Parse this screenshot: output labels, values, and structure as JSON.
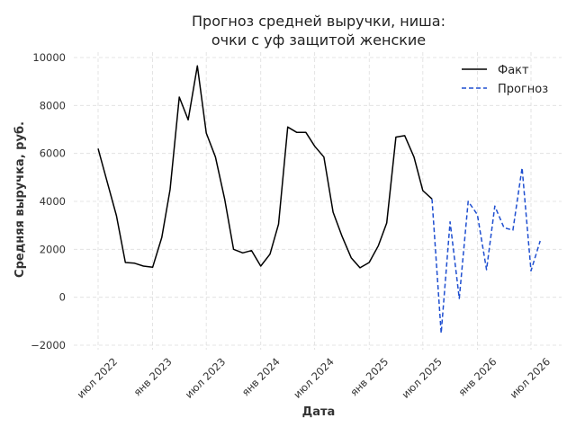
{
  "chart_data": {
    "type": "line",
    "title_line1": "Прогноз средней выручки, ниша:",
    "title_line2": "очки с уф защитой женские",
    "xlabel": "Дата",
    "ylabel": "Средняя выручка, руб.",
    "ylim": [
      -2000,
      10000
    ],
    "xlim": [
      "2022-04-01",
      "2026-08-01"
    ],
    "yticks": [
      -2000,
      0,
      2000,
      4000,
      6000,
      8000,
      10000
    ],
    "ytick_labels": [
      "−2000",
      "0",
      "2000",
      "4000",
      "6000",
      "8000",
      "10000"
    ],
    "xticks": [
      "2022-07-01",
      "2023-01-01",
      "2023-07-01",
      "2024-01-01",
      "2024-07-01",
      "2025-01-01",
      "2025-07-01",
      "2026-01-01",
      "2026-07-01"
    ],
    "xtick_labels": [
      "июл 2022",
      "янв 2023",
      "июл 2023",
      "янв 2024",
      "июл 2024",
      "янв 2025",
      "июл 2025",
      "янв 2026",
      "июл 2026"
    ],
    "grid": true,
    "legend_position": "top-right",
    "series": [
      {
        "name": "Факт",
        "color": "#000000",
        "style": "solid",
        "points": [
          [
            "2022-07-01",
            6200
          ],
          [
            "2022-08-01",
            4800
          ],
          [
            "2022-09-01",
            3400
          ],
          [
            "2022-10-01",
            1450
          ],
          [
            "2022-11-01",
            1420
          ],
          [
            "2022-12-01",
            1300
          ],
          [
            "2023-01-01",
            1250
          ],
          [
            "2023-02-01",
            2500
          ],
          [
            "2023-03-01",
            4500
          ],
          [
            "2023-04-01",
            8350
          ],
          [
            "2023-05-01",
            7400
          ],
          [
            "2023-06-01",
            9650
          ],
          [
            "2023-07-01",
            6850
          ],
          [
            "2023-08-01",
            5850
          ],
          [
            "2023-09-01",
            4100
          ],
          [
            "2023-10-01",
            2000
          ],
          [
            "2023-11-01",
            1850
          ],
          [
            "2023-12-01",
            1950
          ],
          [
            "2024-01-01",
            1300
          ],
          [
            "2024-02-01",
            1800
          ],
          [
            "2024-03-01",
            3050
          ],
          [
            "2024-04-01",
            7100
          ],
          [
            "2024-05-01",
            6880
          ],
          [
            "2024-06-01",
            6880
          ],
          [
            "2024-07-01",
            6300
          ],
          [
            "2024-08-01",
            5850
          ],
          [
            "2024-09-01",
            3550
          ],
          [
            "2024-10-01",
            2550
          ],
          [
            "2024-11-01",
            1650
          ],
          [
            "2024-12-01",
            1230
          ],
          [
            "2025-01-01",
            1450
          ],
          [
            "2025-02-01",
            2150
          ],
          [
            "2025-03-01",
            3100
          ],
          [
            "2025-04-01",
            6680
          ],
          [
            "2025-05-01",
            6740
          ],
          [
            "2025-06-01",
            5850
          ],
          [
            "2025-07-01",
            4450
          ],
          [
            "2025-08-01",
            4100
          ]
        ]
      },
      {
        "name": "Прогноз",
        "color": "#1f4fd0",
        "style": "dashed",
        "points": [
          [
            "2025-08-01",
            4100
          ],
          [
            "2025-09-01",
            -1500
          ],
          [
            "2025-10-01",
            3150
          ],
          [
            "2025-11-01",
            -50
          ],
          [
            "2025-12-01",
            4000
          ],
          [
            "2026-01-01",
            3450
          ],
          [
            "2026-02-01",
            1150
          ],
          [
            "2026-03-01",
            3800
          ],
          [
            "2026-04-01",
            2900
          ],
          [
            "2026-05-01",
            2800
          ],
          [
            "2026-06-01",
            5400
          ],
          [
            "2026-07-01",
            1100
          ],
          [
            "2026-08-01",
            2350
          ]
        ]
      }
    ]
  }
}
